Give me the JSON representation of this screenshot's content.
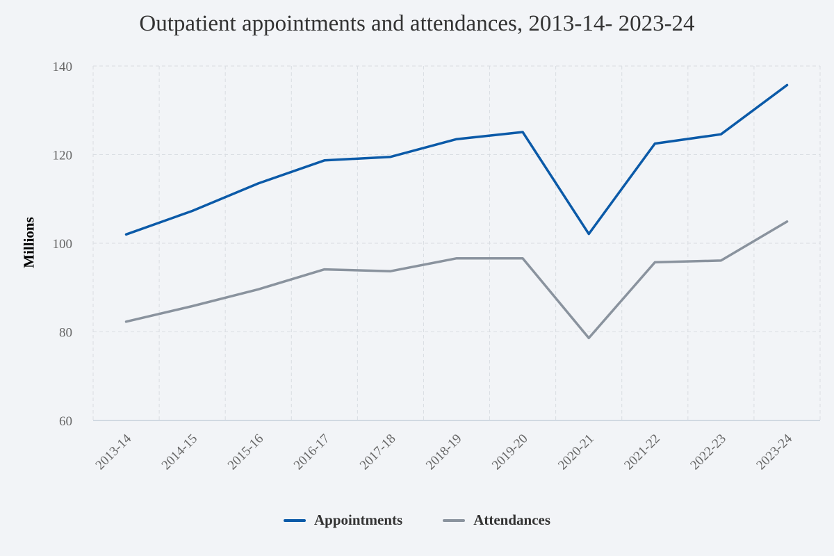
{
  "chart_data": {
    "type": "line",
    "title": "Outpatient appointments and attendances, 2013-14- 2023-24",
    "xlabel": "",
    "ylabel": "Millions",
    "ylim": [
      60,
      140
    ],
    "yticks": [
      60,
      80,
      100,
      120,
      140
    ],
    "categories": [
      "2013-14",
      "2014-15",
      "2015-16",
      "2016-17",
      "2017-18",
      "2018-19",
      "2019-20",
      "2020-21",
      "2021-22",
      "2022-23",
      "2023-24"
    ],
    "series": [
      {
        "name": "Appointments",
        "color": "#0b5aa8",
        "values": [
          102.0,
          107.3,
          113.5,
          118.7,
          119.5,
          123.5,
          125.1,
          102.1,
          122.5,
          124.6,
          135.7
        ]
      },
      {
        "name": "Attendances",
        "color": "#8a939e",
        "values": [
          82.3,
          85.8,
          89.6,
          94.1,
          93.7,
          96.6,
          96.6,
          78.6,
          95.7,
          96.1,
          104.9
        ]
      }
    ],
    "grid": true,
    "legend_position": "bottom"
  }
}
